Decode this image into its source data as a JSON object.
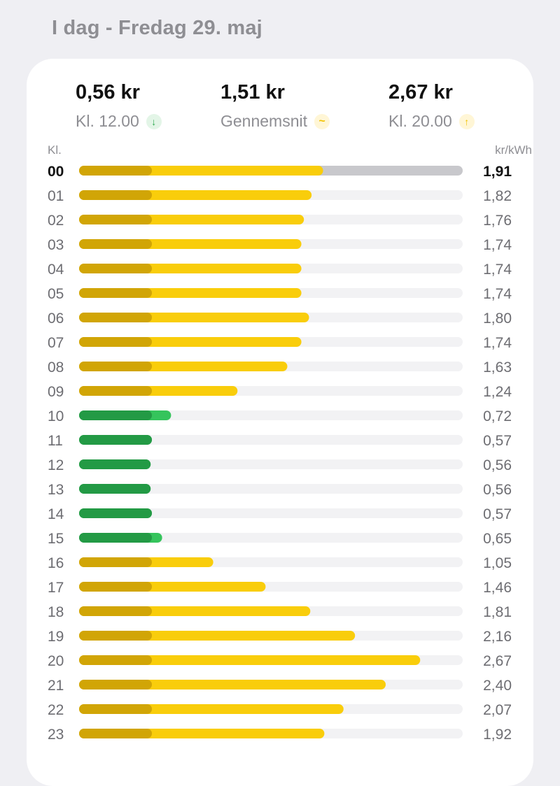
{
  "header": {
    "title": "I dag - Fredag 29. maj"
  },
  "summary": {
    "min": {
      "value": "0,56 kr",
      "label": "Kl. 12.00",
      "icon": "arrow-down-icon"
    },
    "avg": {
      "value": "1,51 kr",
      "label": "Gennemsnit",
      "icon": "tilde-icon"
    },
    "max": {
      "value": "2,67 kr",
      "label": "Kl. 20.00",
      "icon": "arrow-up-icon"
    }
  },
  "colors": {
    "expensive": "#f9cd0b",
    "expensive_base": "#d1a506",
    "cheap": "#35c45c",
    "cheap_base": "#239a45",
    "track": "#f2f2f4",
    "track_current": "#c8c8cc"
  },
  "chart_data": {
    "type": "bar",
    "orientation": "horizontal",
    "xlabel": "kr/kWh",
    "ylabel": "Kl.",
    "current_hour": "00",
    "xlim": [
      0,
      3.0
    ],
    "base_segment_value": 0.57,
    "categories": [
      "00",
      "01",
      "02",
      "03",
      "04",
      "05",
      "06",
      "07",
      "08",
      "09",
      "10",
      "11",
      "12",
      "13",
      "14",
      "15",
      "16",
      "17",
      "18",
      "19",
      "20",
      "21",
      "22",
      "23"
    ],
    "values": [
      1.91,
      1.82,
      1.76,
      1.74,
      1.74,
      1.74,
      1.8,
      1.74,
      1.63,
      1.24,
      0.72,
      0.57,
      0.56,
      0.56,
      0.57,
      0.65,
      1.05,
      1.46,
      1.81,
      2.16,
      2.67,
      2.4,
      2.07,
      1.92
    ],
    "value_labels": [
      "1,91",
      "1,82",
      "1,76",
      "1,74",
      "1,74",
      "1,74",
      "1,80",
      "1,74",
      "1,63",
      "1,24",
      "0,72",
      "0,57",
      "0,56",
      "0,56",
      "0,57",
      "0,65",
      "1,05",
      "1,46",
      "1,81",
      "2,16",
      "2,67",
      "2,40",
      "2,07",
      "1,92"
    ],
    "cheap": [
      false,
      false,
      false,
      false,
      false,
      false,
      false,
      false,
      false,
      false,
      true,
      true,
      true,
      true,
      true,
      true,
      false,
      false,
      false,
      false,
      false,
      false,
      false,
      false
    ]
  }
}
